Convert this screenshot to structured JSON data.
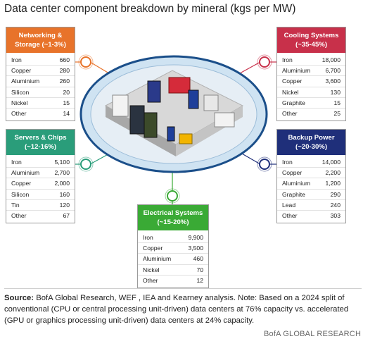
{
  "title": "Data center component breakdown by mineral (kgs per MW)",
  "boxes": [
    {
      "title": "Networking & Storage",
      "share": "(~1-3%)",
      "rows": [
        [
          "Iron",
          "660"
        ],
        [
          "Copper",
          "280"
        ],
        [
          "Aluminium",
          "260"
        ],
        [
          "Silicon",
          "20"
        ],
        [
          "Nickel",
          "15"
        ],
        [
          "Other",
          "14"
        ]
      ]
    },
    {
      "title": "Servers & Chips",
      "share": "(~12-16%)",
      "rows": [
        [
          "Iron",
          "5,100"
        ],
        [
          "Aluminium",
          "2,700"
        ],
        [
          "Copper",
          "2,000"
        ],
        [
          "Silicon",
          "160"
        ],
        [
          "Tin",
          "120"
        ],
        [
          "Other",
          "67"
        ]
      ]
    },
    {
      "title": "Cooling Systems",
      "share": "(~35-45%)",
      "rows": [
        [
          "Iron",
          "18,000"
        ],
        [
          "Aluminium",
          "6,700"
        ],
        [
          "Copper",
          "3,600"
        ],
        [
          "Nickel",
          "130"
        ],
        [
          "Graphite",
          "15"
        ],
        [
          "Other",
          "25"
        ]
      ]
    },
    {
      "title": "Backup Power",
      "share": "(~20-30%)",
      "rows": [
        [
          "Iron",
          "14,000"
        ],
        [
          "Copper",
          "2,200"
        ],
        [
          "Aluminium",
          "1,200"
        ],
        [
          "Graphite",
          "290"
        ],
        [
          "Lead",
          "240"
        ],
        [
          "Other",
          "303"
        ]
      ]
    },
    {
      "title": "Electrical Systems",
      "share": "(~15-20%)",
      "rows": [
        [
          "Iron",
          "9,900"
        ],
        [
          "Copper",
          "3,500"
        ],
        [
          "Aluminium",
          "460"
        ],
        [
          "Nickel",
          "70"
        ],
        [
          "Other",
          "12"
        ]
      ]
    }
  ],
  "source_label": "Source:",
  "source_text": "BofA Global Research, WEF , IEA and Kearney analysis. Note: Based on a 2024 split of conventional (CPU or central processing unit-driven) data centers at 76% capacity vs. accelerated (GPU or graphics processing unit-driven) data centers at 24% capacity.",
  "footer": "BofA GLOBAL RESEARCH"
}
